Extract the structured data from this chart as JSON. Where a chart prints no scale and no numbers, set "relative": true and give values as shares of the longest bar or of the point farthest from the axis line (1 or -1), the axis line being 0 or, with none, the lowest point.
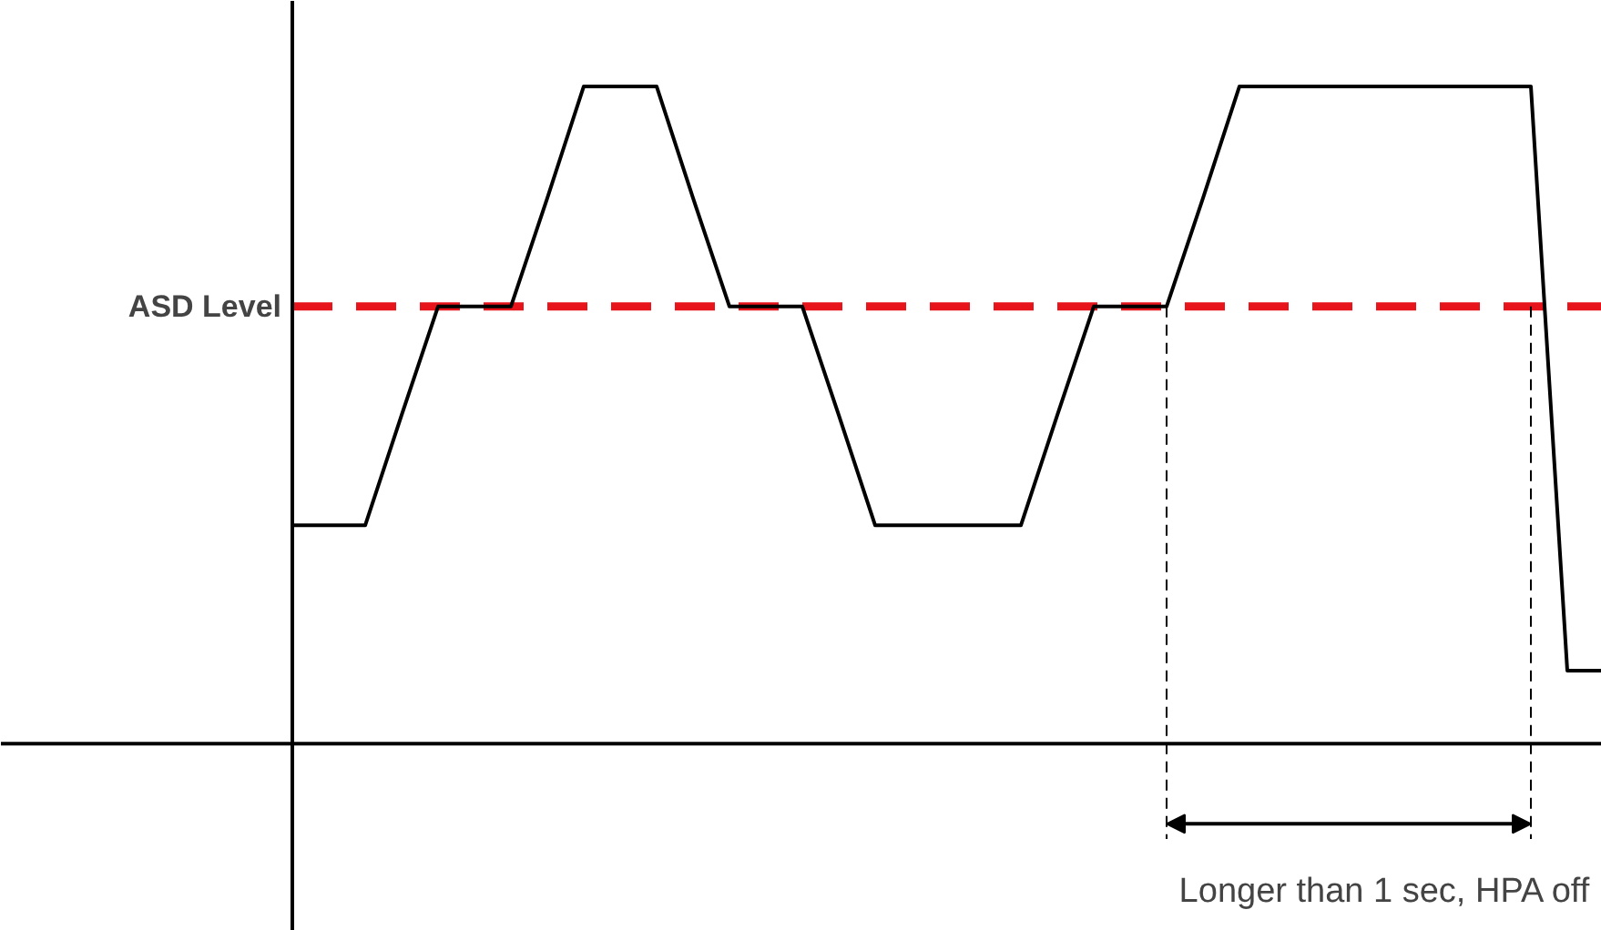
{
  "chart_data": {
    "type": "line",
    "relative": true,
    "line_style": "solid",
    "categories": [
      null,
      null,
      null,
      null,
      null,
      null,
      null,
      null,
      null,
      null,
      null,
      null,
      null,
      null,
      null,
      null,
      null,
      null,
      null,
      null,
      null,
      null,
      null,
      null,
      null,
      null,
      null,
      null,
      null,
      null,
      null,
      null,
      null,
      null,
      null,
      null,
      null
    ],
    "series": [
      {
        "color": "#000000",
        "values": [
          0.332,
          0.332,
          0.332,
          0.5,
          0.665,
          0.665,
          0.665,
          0.83,
          1,
          1,
          1,
          0.83,
          0.665,
          0.665,
          0.665,
          0.5,
          0.332,
          0.332,
          0.332,
          0.332,
          0.332,
          0.5,
          0.665,
          0.665,
          0.665,
          0.83,
          1,
          1,
          1,
          1,
          1,
          1,
          1,
          1,
          1,
          0.111,
          0.111
        ]
      }
    ],
    "ref_lines": [
      {
        "axis": "y",
        "value": 0.665,
        "label": "ASD Level",
        "color": "#e8141c",
        "line_style": "dashed"
      }
    ],
    "annotations": [
      "Longer than 1 sec, HPA off"
    ]
  }
}
